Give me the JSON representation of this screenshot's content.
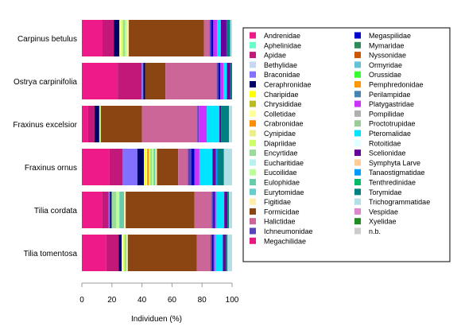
{
  "chart_data": {
    "type": "bar",
    "orientation": "horizontal",
    "stacked": true,
    "xlabel": "Individuen (%)",
    "xlim": [
      0,
      100
    ],
    "xticks": [
      0,
      20,
      40,
      60,
      80,
      100
    ],
    "grid": false,
    "legend_position": "right",
    "categories": [
      "Carpinus betulus",
      "Ostrya carpinifolia",
      "Fraxinus excelsior",
      "Fraxinus ornus",
      "Tilia cordata",
      "Tilia tomentosa"
    ],
    "series": [
      {
        "name": "Andrenidae",
        "color": "#ee1a8a",
        "values": [
          11,
          21,
          4,
          17,
          13,
          16
        ]
      },
      {
        "name": "Aphelinidae",
        "color": "#66ffcc",
        "values": [
          0,
          0,
          0,
          0,
          0,
          0
        ]
      },
      {
        "name": "Apidae",
        "color": "#c2187a",
        "values": [
          6,
          14,
          4,
          8,
          4,
          8
        ]
      },
      {
        "name": "Bethylidae",
        "color": "#c6d9f1",
        "values": [
          0,
          0,
          0,
          0,
          0,
          0
        ]
      },
      {
        "name": "Braconidae",
        "color": "#8470ff",
        "values": [
          0,
          1,
          0,
          9,
          1,
          0
        ]
      },
      {
        "name": "Ceraphronidae",
        "color": "#000066",
        "values": [
          3,
          1,
          3,
          4,
          1,
          2
        ]
      },
      {
        "name": "Charipidae",
        "color": "#ffff00",
        "values": [
          0,
          0,
          0,
          1,
          0,
          0
        ]
      },
      {
        "name": "Chrysididae",
        "color": "#bbbb22",
        "values": [
          0,
          0,
          0,
          0,
          0,
          0
        ]
      },
      {
        "name": "Colletidae",
        "color": "#ffff99",
        "values": [
          1,
          0,
          0,
          1,
          0,
          1
        ]
      },
      {
        "name": "Crabronidae",
        "color": "#ff8c00",
        "values": [
          0,
          0,
          0,
          1,
          0,
          0
        ]
      },
      {
        "name": "Cynipidae",
        "color": "#eeee88",
        "values": [
          0,
          0,
          0,
          0,
          0,
          0
        ]
      },
      {
        "name": "Diapriidae",
        "color": "#ccff66",
        "values": [
          1,
          0,
          1,
          1,
          0,
          1
        ]
      },
      {
        "name": "Encyrtidae",
        "color": "#99dd99",
        "values": [
          1,
          0,
          0,
          1,
          3,
          1
        ]
      },
      {
        "name": "Eucharitidae",
        "color": "#bbf0f0",
        "values": [
          0,
          0,
          0,
          0,
          0,
          0
        ]
      },
      {
        "name": "Eucoilidae",
        "color": "#bbff99",
        "values": [
          1,
          0,
          0,
          1,
          2,
          0
        ]
      },
      {
        "name": "Eulophidae",
        "color": "#66ccaa",
        "values": [
          0,
          0,
          0,
          1,
          3,
          0
        ]
      },
      {
        "name": "Eurytomidae",
        "color": "#66cccc",
        "values": [
          0,
          0,
          0,
          0,
          0,
          0
        ]
      },
      {
        "name": "Figitidae",
        "color": "#ffeeaa",
        "values": [
          1,
          0,
          0,
          1,
          1,
          1
        ]
      },
      {
        "name": "Formicidae",
        "color": "#8b4513",
        "values": [
          40,
          12,
          26,
          13,
          44,
          45
        ]
      },
      {
        "name": "Halictidae",
        "color": "#cc6699",
        "values": [
          3,
          30,
          35,
          6,
          11,
          9
        ]
      },
      {
        "name": "Ichneumonidae",
        "color": "#5544bb",
        "values": [
          1,
          1,
          1,
          2,
          1,
          1
        ]
      },
      {
        "name": "Megachilidae",
        "color": "#e6197f",
        "values": [
          0,
          0,
          0,
          0,
          0,
          0
        ]
      },
      {
        "name": "Megaspilidae",
        "color": "#0000cc",
        "values": [
          1,
          1,
          0,
          2,
          1,
          1
        ]
      },
      {
        "name": "Mymaridae",
        "color": "#2e8b57",
        "values": [
          0,
          0,
          0,
          0,
          0,
          0
        ]
      },
      {
        "name": "Nyssonidae",
        "color": "#cc5500",
        "values": [
          0,
          0,
          0,
          0,
          0,
          0
        ]
      },
      {
        "name": "Ormyridae",
        "color": "#66c2d6",
        "values": [
          0,
          0,
          0,
          0,
          0,
          0
        ]
      },
      {
        "name": "Orussidae",
        "color": "#33ff33",
        "values": [
          0,
          0,
          0,
          0,
          0,
          0
        ]
      },
      {
        "name": "Pemphredonidae",
        "color": "#ff9900",
        "values": [
          0,
          0,
          0,
          0,
          0,
          0
        ]
      },
      {
        "name": "Perilampidae",
        "color": "#4682b4",
        "values": [
          0,
          0,
          0,
          0,
          0,
          0
        ]
      },
      {
        "name": "Platygastridae",
        "color": "#cc33ff",
        "values": [
          2,
          2,
          5,
          3,
          1,
          1
        ]
      },
      {
        "name": "Pompilidae",
        "color": "#b0b0b0",
        "values": [
          0,
          0,
          0,
          0,
          0,
          0
        ]
      },
      {
        "name": "Proctotrupidae",
        "color": "#99cc99",
        "values": [
          0,
          0,
          0,
          0,
          0,
          0
        ]
      },
      {
        "name": "Pteromalidae",
        "color": "#00e5ff",
        "values": [
          2,
          2,
          8,
          8,
          5,
          5
        ]
      },
      {
        "name": "Rotoitidae",
        "color": "#e0ffff",
        "values": [
          0,
          0,
          0,
          0,
          0,
          0
        ]
      },
      {
        "name": "Scelionidae",
        "color": "#660099",
        "values": [
          3,
          2,
          1,
          2,
          2,
          2
        ]
      },
      {
        "name": "Symphyta Larve",
        "color": "#ffcc99",
        "values": [
          0,
          0,
          0,
          0,
          0,
          0
        ]
      },
      {
        "name": "Tanaostigmatidae",
        "color": "#0099ff",
        "values": [
          0,
          0,
          0,
          1,
          0,
          0
        ]
      },
      {
        "name": "Tenthredinidae",
        "color": "#00bb66",
        "values": [
          0,
          0,
          0,
          0,
          0,
          0
        ]
      },
      {
        "name": "Torymidae",
        "color": "#008080",
        "values": [
          2,
          1,
          5,
          4,
          1,
          1
        ]
      },
      {
        "name": "Trichogrammatidae",
        "color": "#b0e0e6",
        "values": [
          1,
          0,
          2,
          5,
          2,
          3
        ]
      },
      {
        "name": "Vespidae",
        "color": "#dd88cc",
        "values": [
          0,
          0,
          0,
          0,
          0,
          0
        ]
      },
      {
        "name": "Xyelidae",
        "color": "#228b22",
        "values": [
          0,
          0,
          0,
          0,
          0,
          0
        ]
      },
      {
        "name": "n.b.",
        "color": "#cccccc",
        "values": [
          0,
          0,
          0,
          0,
          0,
          0
        ]
      }
    ]
  }
}
